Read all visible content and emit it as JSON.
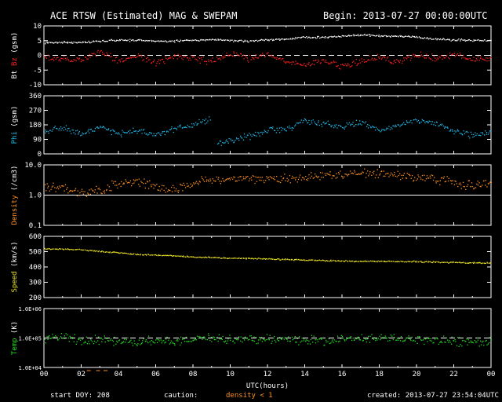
{
  "header": {
    "title": "ACE RTSW (Estimated) MAG & SWEPAM",
    "begin": "Begin: 2013-07-27 00:00:00UTC"
  },
  "footer": {
    "start_doy": "start DOY: 208",
    "caution": "caution:",
    "density_caution": "density < 1",
    "created": "created: 2013-07-27 23:54:04UTC"
  },
  "colors": {
    "background": "#000000",
    "axes": "#ffffff",
    "bt": "#ffffff",
    "bz": "#ff2020",
    "phi": "#20b8e8",
    "density": "#ff9020",
    "speed": "#e8e020",
    "temp": "#20e020",
    "caution": "#ff9020"
  },
  "chart_data": [
    {
      "type": "scatter",
      "panel": "mag",
      "ylabel": [
        "Bt",
        "Bz",
        "(gsm)"
      ],
      "ylim": [
        -10,
        10
      ],
      "yticks": [
        "10",
        "5",
        "0",
        "-5",
        "-10"
      ],
      "reference_line": 0,
      "x": [
        0,
        1,
        2,
        3,
        4,
        5,
        6,
        7,
        8,
        9,
        10,
        11,
        12,
        13,
        14,
        15,
        16,
        17,
        18,
        19,
        20,
        21,
        22,
        23,
        24
      ],
      "series": [
        {
          "name": "Bt",
          "values": [
            4.5,
            4.5,
            4.5,
            5.0,
            5.3,
            5.3,
            5.0,
            5.0,
            5.3,
            5.5,
            5.2,
            5.0,
            5.4,
            5.7,
            6.2,
            6.3,
            6.6,
            7.1,
            6.8,
            6.7,
            6.4,
            5.7,
            5.4,
            5.3,
            5.2
          ]
        },
        {
          "name": "Bz",
          "values": [
            -0.5,
            -1.0,
            -1.5,
            1.5,
            -2.0,
            0.5,
            -2.5,
            0.0,
            -1.0,
            -2.0,
            0.5,
            -1.0,
            0.5,
            -2.0,
            -3.0,
            -1.5,
            -3.5,
            -2.0,
            -0.5,
            -2.0,
            0.5,
            -1.0,
            0.5,
            -1.5,
            -0.5
          ]
        }
      ]
    },
    {
      "type": "scatter",
      "panel": "phi",
      "ylabel": [
        "Phi",
        "(gsm)"
      ],
      "ylim": [
        0,
        360
      ],
      "yticks": [
        "360",
        "270",
        "180",
        "90",
        "0"
      ],
      "x": [
        0,
        1,
        2,
        3,
        4,
        5,
        6,
        7,
        8,
        8.9,
        9.3,
        10,
        11,
        12,
        13,
        14,
        15,
        16,
        17,
        18,
        19,
        20,
        21,
        22,
        23,
        24
      ],
      "values": [
        140,
        160,
        120,
        170,
        130,
        150,
        120,
        160,
        180,
        220,
        60,
        90,
        110,
        150,
        160,
        210,
        190,
        170,
        200,
        150,
        180,
        210,
        190,
        140,
        120,
        140
      ]
    },
    {
      "type": "scatter",
      "panel": "density",
      "ylabel": [
        "Density",
        "(/cm3)"
      ],
      "yscale": "log",
      "ylim": [
        0.1,
        10.0
      ],
      "yticks": [
        "10.0",
        "1.0",
        "0.1"
      ],
      "reference_line": 1.0,
      "x": [
        0,
        1,
        2,
        3,
        4,
        5,
        6,
        7,
        8,
        9,
        10,
        11,
        12,
        13,
        14,
        15,
        16,
        17,
        18,
        19,
        20,
        21,
        22,
        23,
        24
      ],
      "values": [
        2.0,
        1.8,
        1.2,
        1.4,
        2.2,
        3.0,
        2.0,
        1.6,
        2.5,
        3.5,
        3.0,
        3.8,
        3.5,
        3.4,
        4.0,
        4.5,
        5.0,
        5.5,
        5.0,
        4.5,
        4.0,
        3.5,
        2.5,
        2.0,
        3.0
      ]
    },
    {
      "type": "scatter",
      "panel": "speed",
      "ylabel": [
        "Speed",
        "(km/s)"
      ],
      "ylim": [
        200,
        600
      ],
      "yticks": [
        "600",
        "500",
        "400",
        "300",
        "200"
      ],
      "x": [
        0,
        1,
        2,
        3,
        4,
        5,
        6,
        7,
        8,
        9,
        10,
        11,
        12,
        13,
        14,
        15,
        16,
        17,
        18,
        19,
        20,
        21,
        22,
        23,
        24
      ],
      "values": [
        520,
        520,
        515,
        505,
        495,
        485,
        480,
        475,
        468,
        465,
        460,
        458,
        455,
        452,
        448,
        445,
        442,
        440,
        440,
        438,
        438,
        435,
        432,
        430,
        428
      ]
    },
    {
      "type": "scatter",
      "panel": "temp",
      "ylabel": [
        "Temp",
        "(K)"
      ],
      "yscale": "log",
      "ylim": [
        10000,
        1000000
      ],
      "yticks": [
        "1.0E+06",
        "1.0E+05",
        "1.0E+04"
      ],
      "reference_line": 100000,
      "x": [
        0,
        1,
        2,
        3,
        4,
        5,
        6,
        7,
        8,
        9,
        10,
        11,
        12,
        13,
        14,
        15,
        16,
        17,
        18,
        19,
        20,
        21,
        22,
        23,
        24
      ],
      "values": [
        100000,
        120000,
        80000,
        90000,
        75000,
        70000,
        85000,
        80000,
        95000,
        110000,
        95000,
        90000,
        100000,
        95000,
        90000,
        85000,
        100000,
        95000,
        110000,
        95000,
        90000,
        85000,
        80000,
        75000,
        70000
      ]
    }
  ],
  "x_axis": {
    "label": "UTC(hours)",
    "xlim": [
      0,
      24
    ],
    "ticks": [
      "00",
      "02",
      "04",
      "06",
      "08",
      "10",
      "12",
      "14",
      "16",
      "18",
      "20",
      "22",
      "00"
    ]
  }
}
